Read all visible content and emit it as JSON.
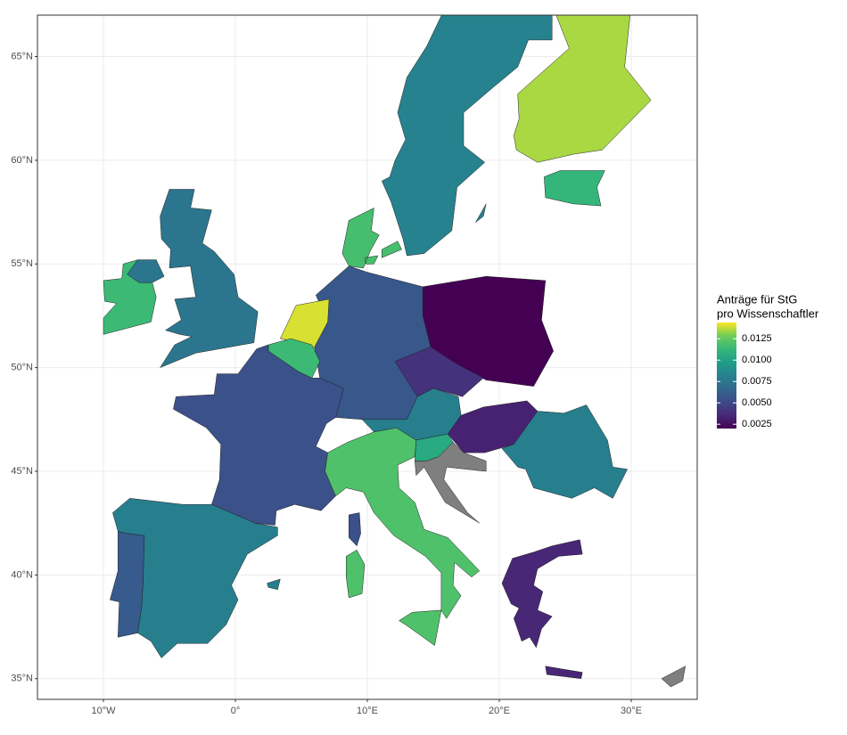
{
  "chart_data": {
    "type": "choropleth",
    "legend_title": [
      "Anträge für StG",
      "pro Wissenschaftler"
    ],
    "values": [
      0.002,
      0.0058,
      0.014,
      0.0115,
      0.0055,
      0.008,
      0.006,
      0.012,
      0.008,
      0.004,
      0.0033,
      0.0105,
      null,
      0.008,
      0.0035,
      null,
      0.0135,
      0.0112,
      0.0082,
      0.0118,
      0.0075,
      0.0115
    ],
    "na_color": "#7f7f7f",
    "clim": [
      0.002,
      0.0144
    ],
    "cticks": [
      0.0025,
      {
        "value": 0.005,
        "label": "0.0050"
      },
      0.0075,
      {
        "value": 0.01,
        "label": "0.0100"
      },
      0.0125
    ],
    "xlim": [
      -15,
      35
    ],
    "ylim": [
      34,
      67
    ],
    "xticks": [
      {
        "value": -10,
        "label": "10°W"
      },
      {
        "value": 0,
        "label": "0°"
      },
      {
        "value": 10,
        "label": "10°E"
      },
      {
        "value": 20,
        "label": "20°E"
      },
      {
        "value": 30,
        "label": "30°E"
      }
    ],
    "yticks": [
      {
        "value": 35,
        "label": "35°N"
      },
      {
        "value": 40,
        "label": "40°N"
      },
      {
        "value": 45,
        "label": "45°N"
      },
      {
        "value": 50,
        "label": "50°N"
      },
      {
        "value": 55,
        "label": "55°N"
      },
      {
        "value": 60,
        "label": "60°N"
      },
      {
        "value": 65,
        "label": "65°N"
      }
    ],
    "grid": true
  }
}
